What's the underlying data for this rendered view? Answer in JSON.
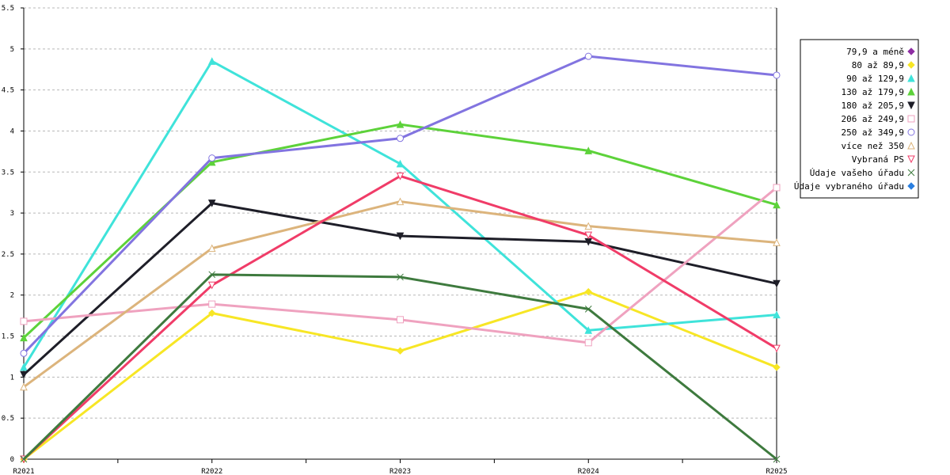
{
  "chart_data": {
    "type": "line",
    "categories": [
      "R2021",
      "R2022",
      "R2023",
      "R2024",
      "R2025"
    ],
    "ylim": [
      0,
      5.5
    ],
    "yticks": [
      "0",
      "0.5",
      "1",
      "1.5",
      "2",
      "2.5",
      "3",
      "3.5",
      "4",
      "4.5",
      "5",
      "5.5"
    ],
    "grid": true,
    "legend_position": "right",
    "series": [
      {
        "name": "79,9 a méně",
        "color": "#8e2ea3",
        "marker": "diamond",
        "values": [
          0,
          0,
          0,
          0,
          0
        ],
        "drawn": false
      },
      {
        "name": "80 až 89,9",
        "color": "#f7e625",
        "marker": "diamond",
        "values": [
          0,
          1.78,
          1.32,
          2.04,
          1.12
        ]
      },
      {
        "name": "90 až 129,9",
        "color": "#3fe3da",
        "marker": "triangle",
        "values": [
          1.12,
          4.85,
          3.6,
          1.57,
          1.76
        ]
      },
      {
        "name": "130 až 179,9",
        "color": "#5dd23a",
        "marker": "triangle",
        "values": [
          1.48,
          3.62,
          4.08,
          3.76,
          3.1
        ]
      },
      {
        "name": "180 až 205,9",
        "color": "#1e1e28",
        "marker": "triangle-down",
        "values": [
          1.03,
          3.12,
          2.72,
          2.65,
          2.14
        ]
      },
      {
        "name": "206 až 249,9",
        "color": "#efa2bf",
        "marker": "square-open",
        "values": [
          1.68,
          1.89,
          1.7,
          1.42,
          3.31
        ]
      },
      {
        "name": "250 až 349,9",
        "color": "#8274e0",
        "marker": "circle-open",
        "values": [
          1.29,
          3.67,
          3.91,
          4.91,
          4.68
        ]
      },
      {
        "name": "více než 350",
        "color": "#dcb47c",
        "marker": "triangle-open",
        "values": [
          0.88,
          2.57,
          3.14,
          2.84,
          2.64
        ]
      },
      {
        "name": "Vybraná PS",
        "color": "#f03c68",
        "marker": "triangle-down-open",
        "values": [
          0,
          2.12,
          3.45,
          2.73,
          1.35
        ]
      },
      {
        "name": "Údaje vašeho úřadu",
        "color": "#3e7a3e",
        "marker": "x",
        "values": [
          0,
          2.25,
          2.22,
          1.83,
          0
        ]
      },
      {
        "name": "Údaje vybraného úřadu",
        "color": "#2a7fe0",
        "marker": "diamond",
        "values": [
          0,
          0,
          0,
          0,
          0
        ],
        "drawn": false
      }
    ]
  }
}
